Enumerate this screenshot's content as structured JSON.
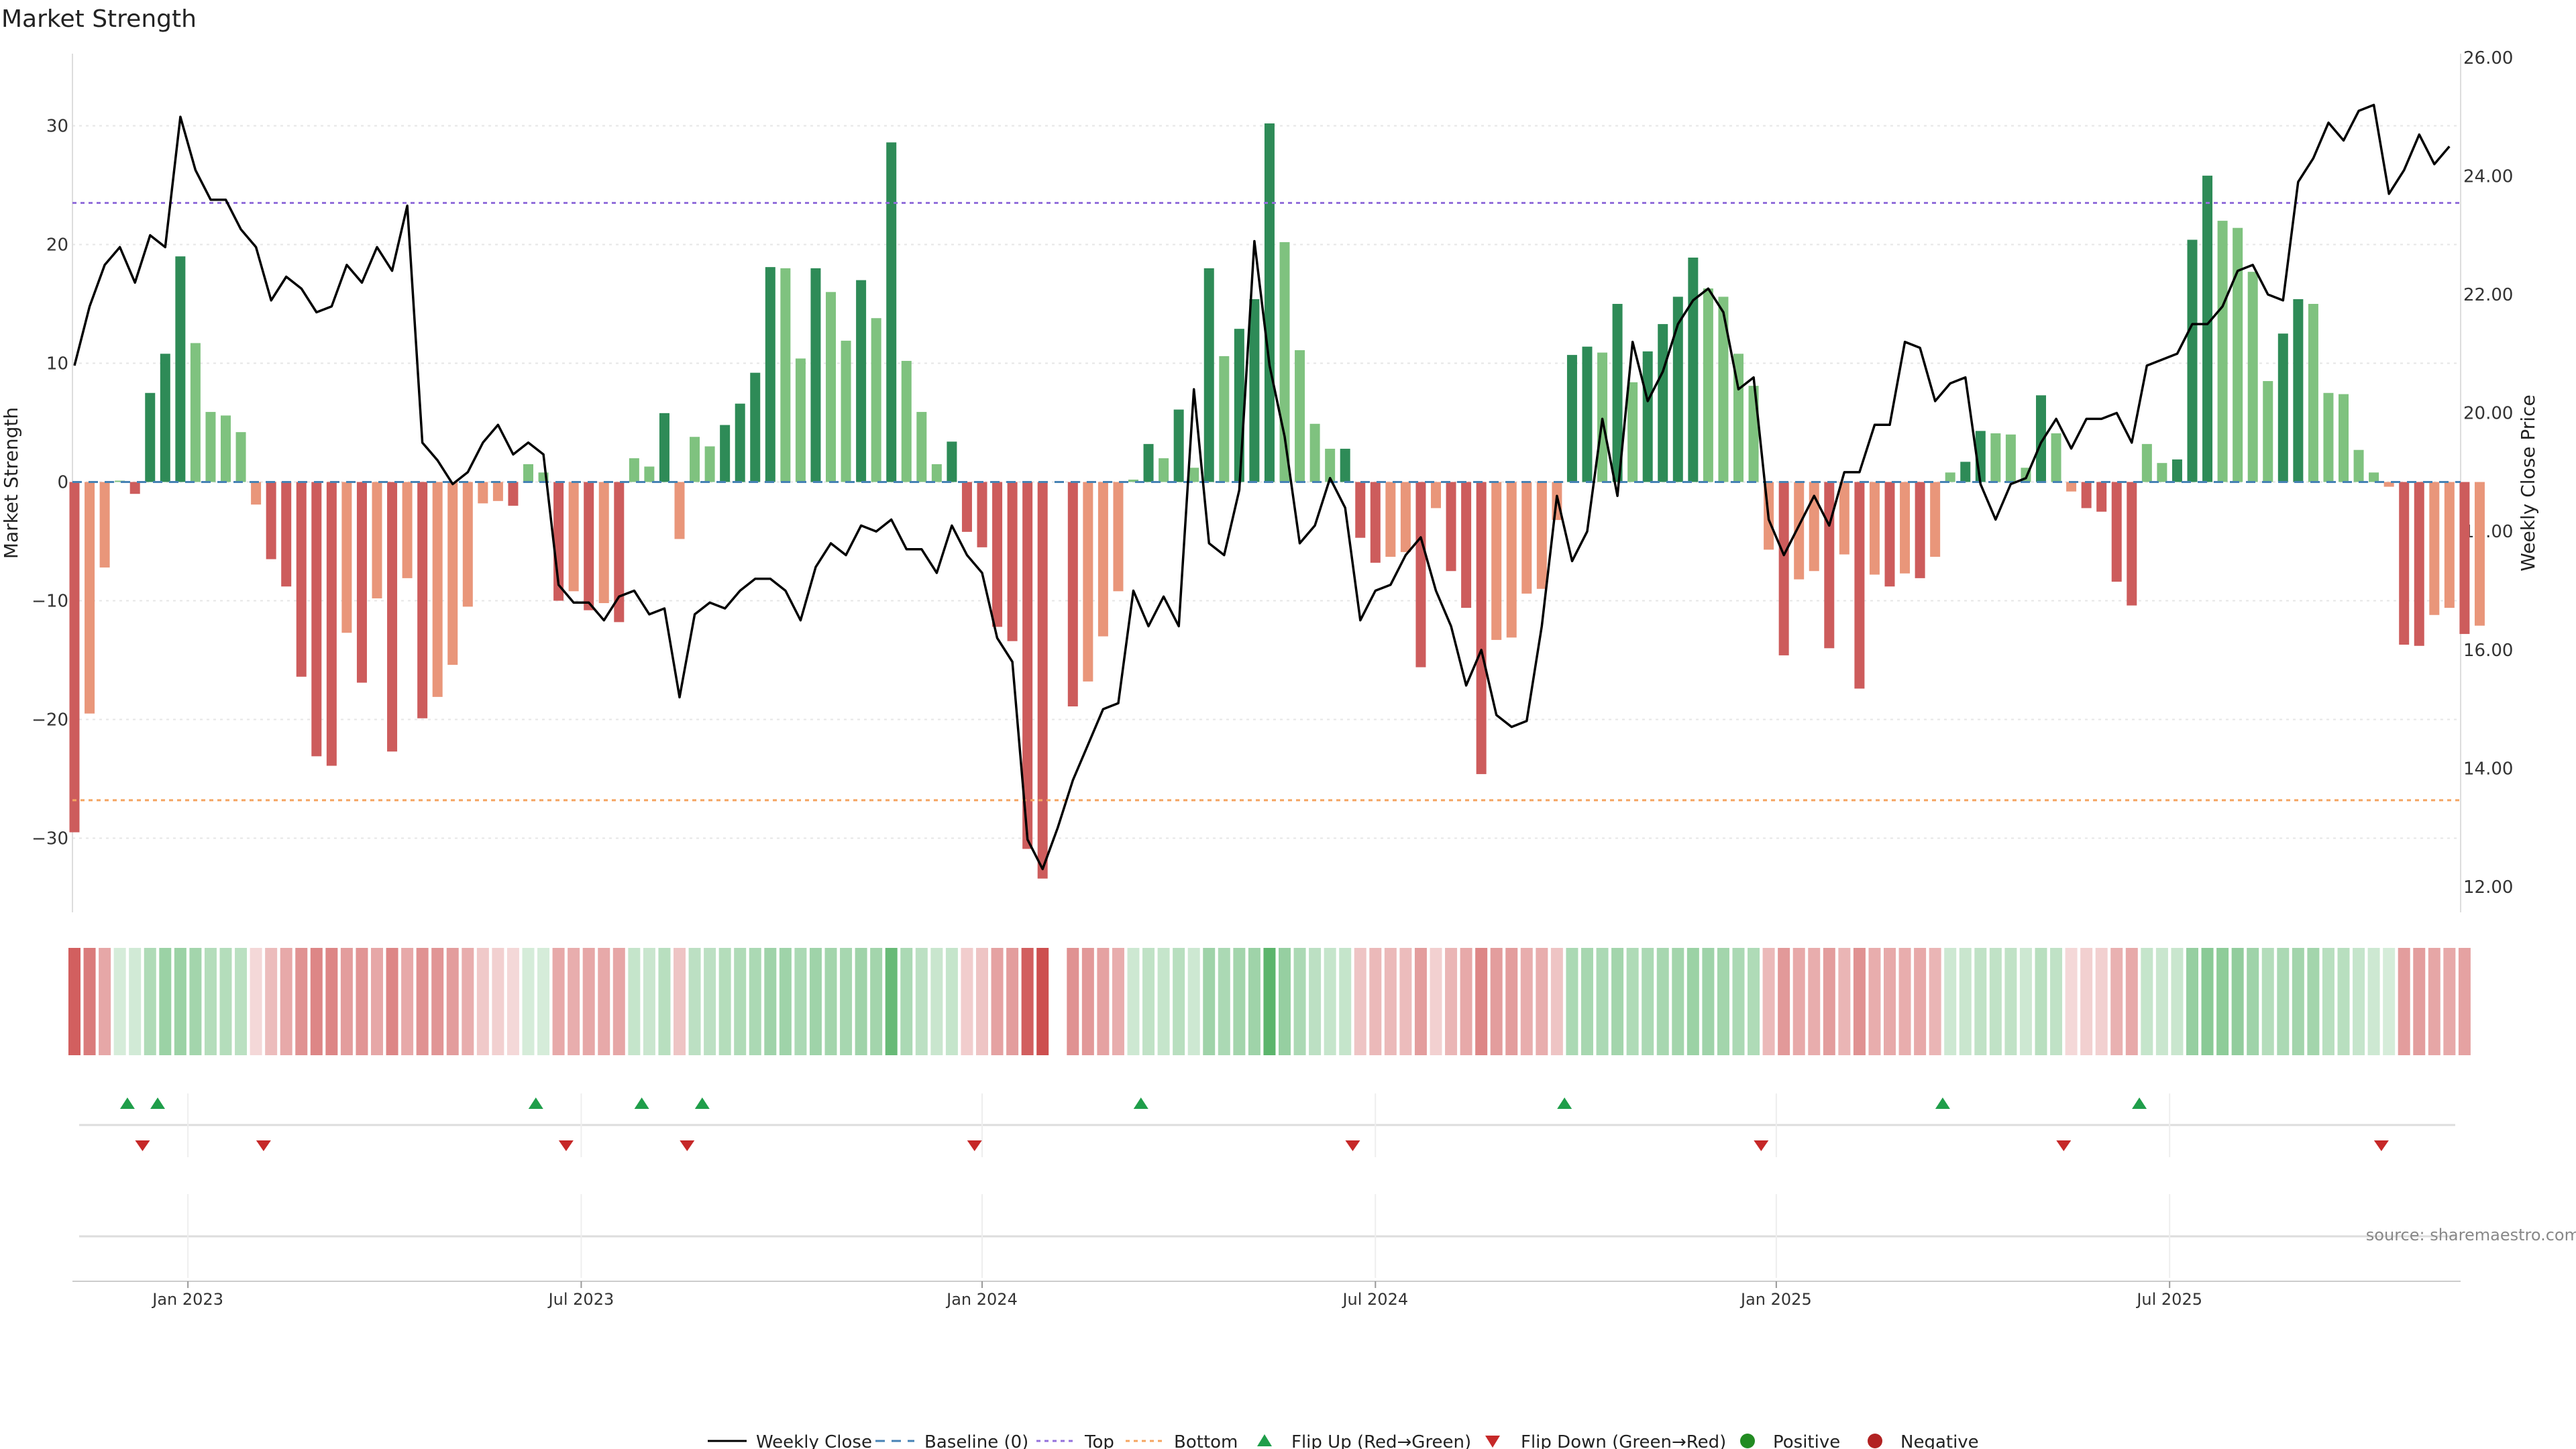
{
  "chart_data": {
    "type": "bar",
    "title": "Market Strength",
    "ylabel": "Market Strength",
    "y2label": "Weekly Close Price",
    "ylim": [
      -36,
      36
    ],
    "y2lim": [
      11.2,
      26.4
    ],
    "yticks": [
      30,
      20,
      10,
      0,
      -10,
      -20,
      -30
    ],
    "ytick_labels": [
      "30",
      "20",
      "10",
      "0",
      "−10",
      "−20",
      "−30"
    ],
    "y2ticks": [
      26,
      24,
      22,
      20,
      18,
      16,
      14,
      12
    ],
    "y2tick_labels": [
      "26.00",
      "24.00",
      "22.00",
      "20.00",
      "18.00",
      "16.00",
      "14.00",
      "12.00"
    ],
    "x_ticks": [
      {
        "label": "Jan 2023",
        "week": 7.5
      },
      {
        "label": "Jul 2023",
        "week": 33.5
      },
      {
        "label": "Jan 2024",
        "week": 60
      },
      {
        "label": "Jul 2024",
        "week": 86
      },
      {
        "label": "Jan 2025",
        "week": 112.5
      },
      {
        "label": "Jul 2025",
        "week": 138.5
      }
    ],
    "top_line": 23.5,
    "bottom_line": -26.8,
    "strength": [
      -29.5,
      -19.5,
      -7.2,
      0.1,
      -1.0,
      7.5,
      10.8,
      19.0,
      11.7,
      5.9,
      5.6,
      4.2,
      -1.9,
      -6.5,
      -8.8,
      -16.4,
      -23.1,
      -23.9,
      -12.7,
      -16.9,
      -9.8,
      -22.7,
      -8.1,
      -19.9,
      -18.1,
      -15.4,
      -10.5,
      -1.8,
      -1.6,
      -2.0,
      1.5,
      0.8,
      -10.0,
      -9.2,
      -10.8,
      -10.2,
      -11.8,
      2.0,
      1.3,
      5.8,
      -4.8,
      3.8,
      3.0,
      4.8,
      6.6,
      9.2,
      18.1,
      18.0,
      10.4,
      18.0,
      16.0,
      11.9,
      17.0,
      13.8,
      28.6,
      10.2,
      5.9,
      1.5,
      3.4,
      -4.2,
      -5.5,
      -12.2,
      -13.4,
      -30.9,
      -33.4,
      null,
      -18.9,
      -16.8,
      -13.0,
      -9.2,
      0.2,
      3.2,
      2.0,
      6.1,
      1.2,
      18.0,
      10.6,
      12.9,
      15.4,
      30.2,
      20.2,
      11.1,
      4.9,
      2.8,
      2.8,
      -4.7,
      -6.8,
      -6.3,
      -5.9,
      -15.6,
      -2.2,
      -7.5,
      -10.6,
      -24.6,
      -13.3,
      -13.1,
      -9.4,
      -9.0,
      -3.2,
      10.7,
      11.4,
      10.9,
      15.0,
      8.4,
      11.0,
      13.3,
      15.6,
      18.9,
      16.3,
      15.6,
      10.8,
      8.1,
      -5.7,
      -14.6,
      -8.2,
      -7.5,
      -14.0,
      -6.1,
      -17.4,
      -7.8,
      -8.8,
      -7.7,
      -8.1,
      -6.3,
      0.8,
      1.7,
      4.3,
      4.1,
      4.0,
      1.2,
      7.3,
      4.1,
      -0.8,
      -2.2,
      -2.5,
      -8.4,
      -10.4,
      3.2,
      1.6,
      1.9,
      20.4,
      25.8,
      22.0,
      21.4,
      17.7,
      8.5,
      12.5,
      15.4,
      15.0,
      7.5,
      7.4,
      2.7,
      0.8,
      -0.4,
      -13.7,
      -13.8,
      -11.2,
      -10.6,
      -12.8,
      -12.1
    ],
    "close": [
      20.8,
      21.8,
      22.5,
      22.8,
      22.2,
      23.0,
      22.8,
      25.0,
      24.1,
      23.6,
      23.6,
      23.1,
      22.8,
      21.9,
      22.3,
      22.1,
      21.7,
      21.8,
      22.5,
      22.2,
      22.8,
      22.4,
      23.5,
      19.5,
      19.2,
      18.8,
      19.0,
      19.5,
      19.8,
      19.3,
      19.5,
      19.3,
      17.1,
      16.8,
      16.8,
      16.5,
      16.9,
      17.0,
      16.6,
      16.7,
      15.2,
      16.6,
      16.8,
      16.7,
      17.0,
      17.2,
      17.2,
      17.0,
      16.5,
      17.4,
      17.8,
      17.6,
      18.1,
      18.0,
      18.2,
      17.7,
      17.7,
      17.3,
      18.1,
      17.6,
      17.3,
      16.2,
      15.8,
      12.8,
      12.3,
      13.0,
      13.8,
      14.4,
      15.0,
      15.1,
      17.0,
      16.4,
      16.9,
      16.4,
      20.4,
      17.8,
      17.6,
      18.7,
      22.9,
      20.8,
      19.6,
      17.8,
      18.1,
      18.9,
      18.4,
      16.5,
      17.0,
      17.1,
      17.6,
      17.9,
      17.0,
      16.4,
      15.4,
      16.0,
      14.9,
      14.7,
      14.8,
      16.4,
      18.6,
      17.5,
      18.0,
      19.9,
      18.6,
      21.2,
      20.2,
      20.7,
      21.5,
      21.9,
      22.1,
      21.7,
      20.4,
      20.6,
      18.2,
      17.6,
      18.1,
      18.6,
      18.1,
      19.0,
      19.0,
      19.8,
      19.8,
      21.2,
      21.1,
      20.2,
      20.5,
      20.6,
      18.8,
      18.2,
      18.8,
      18.9,
      19.5,
      19.9,
      19.4,
      19.9,
      19.9,
      20.0,
      19.5,
      20.8,
      20.9,
      21.0,
      21.5,
      21.5,
      21.8,
      22.4,
      22.5,
      22.0,
      21.9,
      23.9,
      24.3,
      24.9,
      24.6,
      25.1,
      25.2,
      23.7,
      24.1,
      24.7,
      24.2,
      24.5
    ],
    "strip_sign": [
      -1,
      -1,
      -1,
      1,
      1,
      1,
      1,
      1,
      1,
      1,
      1,
      1,
      -1,
      -1,
      -1,
      -1,
      -1,
      -1,
      -1,
      -1,
      -1,
      -1,
      -1,
      -1,
      -1,
      -1,
      -1,
      -1,
      -1,
      -1,
      1,
      1,
      -1,
      -1,
      -1,
      -1,
      -1,
      1,
      1,
      1,
      -1,
      1,
      1,
      1,
      1,
      1,
      1,
      1,
      1,
      1,
      1,
      1,
      1,
      1,
      1,
      1,
      1,
      1,
      1,
      -1,
      -1,
      -1,
      -1,
      -1,
      -1,
      null,
      -1,
      -1,
      -1,
      -1,
      1,
      1,
      1,
      1,
      1,
      1,
      1,
      1,
      1,
      1,
      1,
      1,
      1,
      1,
      1,
      -1,
      -1,
      -1,
      -1,
      -1,
      -1,
      -1,
      -1,
      -1,
      -1,
      -1,
      -1,
      -1,
      -1,
      1,
      1,
      1,
      1,
      1,
      1,
      1,
      1,
      1,
      1,
      1,
      1,
      1,
      -1,
      -1,
      -1,
      -1,
      -1,
      -1,
      -1,
      -1,
      -1,
      -1,
      -1,
      -1,
      1,
      1,
      1,
      1,
      1,
      1,
      1,
      1,
      -1,
      -1,
      -1,
      -1,
      -1,
      1,
      1,
      1,
      1,
      1,
      1,
      1,
      1,
      1,
      1,
      1,
      1,
      1,
      1,
      1,
      1,
      1,
      -1,
      -1,
      -1,
      -1,
      -1
    ],
    "strip_intensity": [
      0.82,
      0.68,
      0.45,
      0.2,
      0.22,
      0.38,
      0.48,
      0.48,
      0.44,
      0.36,
      0.36,
      0.33,
      0.2,
      0.34,
      0.44,
      0.56,
      0.62,
      0.62,
      0.5,
      0.55,
      0.45,
      0.62,
      0.44,
      0.56,
      0.54,
      0.5,
      0.42,
      0.28,
      0.24,
      0.2,
      0.2,
      0.2,
      0.44,
      0.42,
      0.45,
      0.44,
      0.46,
      0.28,
      0.26,
      0.34,
      0.3,
      0.32,
      0.32,
      0.36,
      0.38,
      0.4,
      0.46,
      0.46,
      0.4,
      0.46,
      0.44,
      0.42,
      0.46,
      0.44,
      0.72,
      0.4,
      0.32,
      0.26,
      0.28,
      0.26,
      0.3,
      0.48,
      0.5,
      0.82,
      0.9,
      null,
      0.56,
      0.52,
      0.48,
      0.42,
      0.24,
      0.3,
      0.28,
      0.34,
      0.24,
      0.46,
      0.4,
      0.44,
      0.46,
      0.78,
      0.5,
      0.4,
      0.32,
      0.28,
      0.28,
      0.3,
      0.36,
      0.36,
      0.34,
      0.5,
      0.24,
      0.38,
      0.44,
      0.62,
      0.5,
      0.5,
      0.42,
      0.42,
      0.3,
      0.4,
      0.42,
      0.4,
      0.44,
      0.38,
      0.4,
      0.42,
      0.44,
      0.48,
      0.46,
      0.44,
      0.4,
      0.38,
      0.36,
      0.52,
      0.44,
      0.42,
      0.5,
      0.38,
      0.56,
      0.42,
      0.44,
      0.42,
      0.44,
      0.38,
      0.24,
      0.26,
      0.3,
      0.3,
      0.3,
      0.24,
      0.34,
      0.3,
      0.2,
      0.24,
      0.24,
      0.4,
      0.44,
      0.28,
      0.26,
      0.26,
      0.5,
      0.56,
      0.54,
      0.52,
      0.46,
      0.36,
      0.4,
      0.44,
      0.44,
      0.34,
      0.34,
      0.28,
      0.24,
      0.2,
      0.5,
      0.5,
      0.46,
      0.44,
      0.48,
      0.48
    ],
    "flip_up_weeks": [
      3.5,
      5.5,
      30.5,
      37.5,
      41.5,
      70.5,
      98.5,
      123.5,
      136.5
    ],
    "flip_down_weeks": [
      4.5,
      12.5,
      32.5,
      40.5,
      59.5,
      84.5,
      111.5,
      131.5,
      152.5
    ],
    "legend": [
      "Weekly Close",
      "Baseline (0)",
      "Top",
      "Bottom",
      "Flip Up (Red→Green)",
      "Flip Down (Green→Red)",
      "Positive",
      "Negative"
    ],
    "source": "source: sharemaestro.com"
  },
  "colors": {
    "pos_strong": "#2e8b57",
    "pos_light": "#7fc27f",
    "neg_strong": "#cd5c5c",
    "neg_light": "#e9967a",
    "top": "#9370db",
    "bottom": "#f4a460",
    "baseline": "#4682b4",
    "flip_up": "#1f9e4a",
    "flip_down": "#c62828",
    "positive": "#228b22",
    "negative": "#b22222"
  }
}
